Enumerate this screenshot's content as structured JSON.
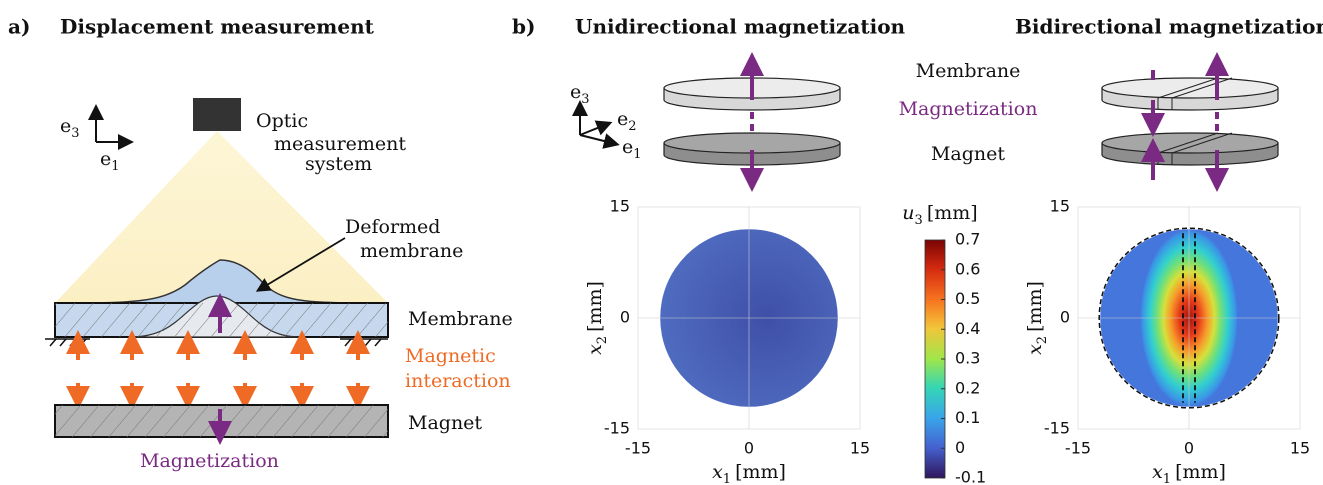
{
  "panel_a": {
    "label": "a)",
    "title": "Displacement measurement",
    "axes": {
      "vertical": {
        "base": "e",
        "sub": "3"
      },
      "horizontal": {
        "base": "e",
        "sub": "1"
      }
    },
    "camera_label": [
      "Optic",
      "measurement",
      "system"
    ],
    "deformed_label": [
      "Deformed",
      "membrane"
    ],
    "membrane": "Membrane",
    "interaction": [
      "Magnetic",
      "interaction"
    ],
    "magnet": "Magnet",
    "magnetization": "Magnetization"
  },
  "panel_b": {
    "label": "b)",
    "left_title": "Unidirectional magnetization",
    "right_title": "Bidirectional magnetization",
    "axes": [
      {
        "base": "e",
        "sub": "3"
      },
      {
        "base": "e",
        "sub": "2"
      },
      {
        "base": "e",
        "sub": "1"
      }
    ],
    "membrane": "Membrane",
    "magnetization": "Magnetization",
    "magnet": "Magnet",
    "plot_ticks": [
      -15,
      0,
      15
    ],
    "x_label": {
      "var": "x",
      "sub": "1",
      "unit": "[mm]"
    },
    "y_label": {
      "var": "x",
      "sub": "2",
      "unit": "[mm]"
    },
    "colorbar": {
      "var": "u",
      "sub": "3",
      "unit": "[mm]",
      "ticks": [
        0.7,
        0.6,
        0.5,
        0.4,
        0.3,
        0.2,
        0.1,
        0,
        -0.1
      ]
    }
  }
}
